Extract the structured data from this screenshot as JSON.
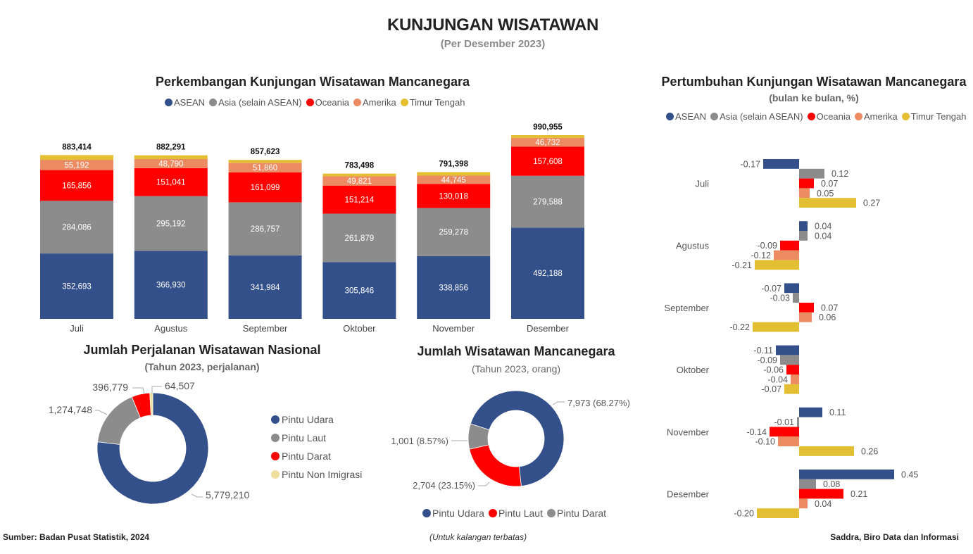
{
  "header": {
    "title": "KUNJUNGAN WISATAWAN",
    "subtitle": "(Per Desember 2023)"
  },
  "colors": {
    "asean": "#34508a",
    "asia": "#8c8c8c",
    "oceania": "#ff0000",
    "amerika": "#ec8a62",
    "timur_tengah": "#e3c033",
    "non_imigrasi": "#f0de9c"
  },
  "chart_data": [
    {
      "id": "stacked",
      "type": "bar",
      "stacked": true,
      "title": "Perkembangan Kunjungan Wisatawan Mancanegara",
      "categories": [
        "Juli",
        "Agustus",
        "September",
        "Oktober",
        "November",
        "Desember"
      ],
      "series": [
        {
          "name": "ASEAN",
          "color": "#34508a",
          "values": [
            352693,
            366930,
            341984,
            305846,
            338856,
            492188
          ],
          "labels": [
            "352,693",
            "366,930",
            "341,984",
            "305,846",
            "338,856",
            "492,188"
          ]
        },
        {
          "name": "Asia (selain ASEAN)",
          "color": "#8c8c8c",
          "values": [
            284086,
            295192,
            286757,
            261879,
            259278,
            279588
          ],
          "labels": [
            "284,086",
            "295,192",
            "286,757",
            "261,879",
            "259,278",
            "279,588"
          ]
        },
        {
          "name": "Oceania",
          "color": "#ff0000",
          "values": [
            165856,
            151041,
            161099,
            151214,
            130018,
            157608
          ],
          "labels": [
            "165,856",
            "151,041",
            "161,099",
            "151,214",
            "130,018",
            "157,608"
          ]
        },
        {
          "name": "Amerika",
          "color": "#ec8a62",
          "values": [
            55192,
            48790,
            51860,
            49821,
            44745,
            46732
          ],
          "labels": [
            "55,192",
            "48,790",
            "51,860",
            "49,821",
            "44,745",
            "46,732"
          ]
        },
        {
          "name": "Timur Tengah",
          "color": "#e3c033",
          "values": [
            25587,
            20338,
            15923,
            14738,
            18501,
            14839
          ],
          "labels": [
            "",
            "",
            "",
            "",
            "",
            ""
          ]
        }
      ],
      "totals": [
        883414,
        882291,
        857623,
        783498,
        791398,
        990955
      ],
      "total_labels": [
        "883,414",
        "882,291",
        "857,623",
        "783,498",
        "791,398",
        "990,955"
      ],
      "legend": [
        "ASEAN",
        "Asia (selain ASEAN)",
        "Oceania",
        "Amerika",
        "Timur Tengah"
      ],
      "legend_position": "top",
      "grid": false,
      "ylim": [
        0,
        1000000
      ]
    },
    {
      "id": "growth",
      "type": "bar",
      "orientation": "horizontal",
      "title": "Pertumbuhan Kunjungan Wisatawan Mancanegara",
      "subtitle": "(bulan ke bulan, %)",
      "categories": [
        "Juli",
        "Agustus",
        "September",
        "Oktober",
        "November",
        "Desember"
      ],
      "series": [
        {
          "name": "ASEAN",
          "color": "#34508a",
          "values": [
            -0.17,
            0.04,
            -0.07,
            -0.11,
            0.11,
            0.45
          ],
          "labels": [
            "-0.17",
            "0.04",
            "-0.07",
            "-0.11",
            "0.11",
            "0.45"
          ]
        },
        {
          "name": "Asia (selain ASEAN)",
          "color": "#8c8c8c",
          "values": [
            0.12,
            0.04,
            -0.03,
            -0.09,
            -0.01,
            0.08
          ],
          "labels": [
            "0.12",
            "0.04",
            "-0.03",
            "-0.09",
            "-0.01",
            "0.08"
          ]
        },
        {
          "name": "Oceania",
          "color": "#ff0000",
          "values": [
            0.07,
            -0.09,
            0.07,
            -0.06,
            -0.14,
            0.21
          ],
          "labels": [
            "0.07",
            "-0.09",
            "0.07",
            "-0.06",
            "-0.14",
            "0.21"
          ]
        },
        {
          "name": "Amerika",
          "color": "#ec8a62",
          "values": [
            0.05,
            -0.12,
            0.06,
            -0.04,
            -0.1,
            0.04
          ],
          "labels": [
            "0.05",
            "-0.12",
            "0.06",
            "-0.04",
            "-0.10",
            "0.04"
          ]
        },
        {
          "name": "Timur Tengah",
          "color": "#e3c033",
          "values": [
            0.27,
            -0.21,
            -0.22,
            -0.07,
            0.26,
            -0.2
          ],
          "labels": [
            "0.27",
            "-0.21",
            "-0.22",
            "-0.07",
            "0.26",
            "-0.20"
          ]
        }
      ],
      "legend": [
        "ASEAN",
        "Asia (selain ASEAN)",
        "Oceania",
        "Amerika",
        "Timur Tengah"
      ],
      "legend_position": "top",
      "grid": false,
      "xlim": [
        -0.25,
        0.5
      ]
    },
    {
      "id": "nasional",
      "type": "pie",
      "donut": true,
      "title": "Jumlah Perjalanan Wisatawan Nasional",
      "subtitle": "(Tahun 2023, perjalanan)",
      "categories": [
        "Pintu Udara",
        "Pintu Laut",
        "Pintu Darat",
        "Pintu Non Imigrasi"
      ],
      "values": [
        5779210,
        1274748,
        396779,
        64507
      ],
      "labels": [
        "5,779,210",
        "1,274,748",
        "396,779",
        "64,507"
      ],
      "colors": [
        "#34508a",
        "#8c8c8c",
        "#ff0000",
        "#f0de9c"
      ],
      "legend": [
        "Pintu Udara",
        "Pintu Laut",
        "Pintu Darat",
        "Pintu Non Imigrasi"
      ],
      "legend_position": "right"
    },
    {
      "id": "mancanegara",
      "type": "pie",
      "donut": true,
      "title": "Jumlah Wisatawan Mancanegara",
      "subtitle": "(Tahun 2023, orang)",
      "categories": [
        "Pintu Udara",
        "Pintu Laut",
        "Pintu Darat"
      ],
      "values": [
        7973,
        2704,
        1001
      ],
      "percents": [
        68.27,
        23.15,
        8.57
      ],
      "labels": [
        "7,973 (68.27%)",
        "2,704 (23.15%)",
        "1,001 (8.57%)"
      ],
      "colors": [
        "#34508a",
        "#ff0000",
        "#8c8c8c"
      ],
      "legend": [
        "Pintu Udara",
        "Pintu Laut",
        "Pintu Darat"
      ],
      "legend_position": "bottom"
    }
  ],
  "footer": {
    "source": "Sumber: Badan Pusat Statistik, 2024",
    "note": "(Untuk kalangan terbatas)",
    "credit": "Saddra, Biro Data dan Informasi"
  }
}
